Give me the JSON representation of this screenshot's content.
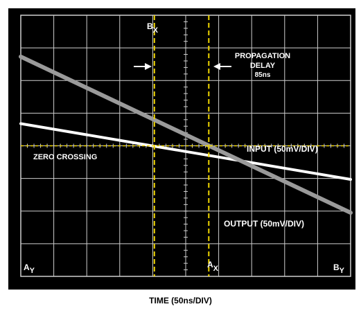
{
  "chart_data": {
    "type": "line",
    "x_unit": "div",
    "y_unit": "div",
    "xlim": [
      0,
      10
    ],
    "ylim": [
      -4,
      4
    ],
    "grid": true,
    "series": [
      {
        "name": "INPUT (50mV/DIV)",
        "color": "#ffffff",
        "x": [
          0,
          10
        ],
        "y": [
          0.68,
          -1.03
        ]
      },
      {
        "name": "OUTPUT (50mV/DIV)",
        "color": "#9a9a9a",
        "x": [
          0,
          10
        ],
        "y": [
          2.73,
          -2.05
        ]
      }
    ],
    "zero_crossing": {
      "label": "ZERO CROSSING",
      "y": 0
    },
    "cursors": [
      {
        "label_main": "B",
        "label_sub": "X",
        "x": 4.05,
        "axis": "x"
      },
      {
        "label_main": "A",
        "label_sub": "X",
        "x": 5.7,
        "axis": "x"
      }
    ],
    "corner_labels": [
      {
        "main": "A",
        "sub": "Y",
        "position": "bottom-left"
      },
      {
        "main": "B",
        "sub": "Y",
        "position": "bottom-right"
      }
    ],
    "annotation": {
      "lines": [
        "PROPAGATION",
        "DELAY",
        "85ns"
      ]
    },
    "xlabel": "TIME (50ns/DIV)",
    "colors": {
      "background": "#000000",
      "grid": "#cfcfcf",
      "cursor": "#f2d800",
      "text": "#ffffff"
    }
  }
}
